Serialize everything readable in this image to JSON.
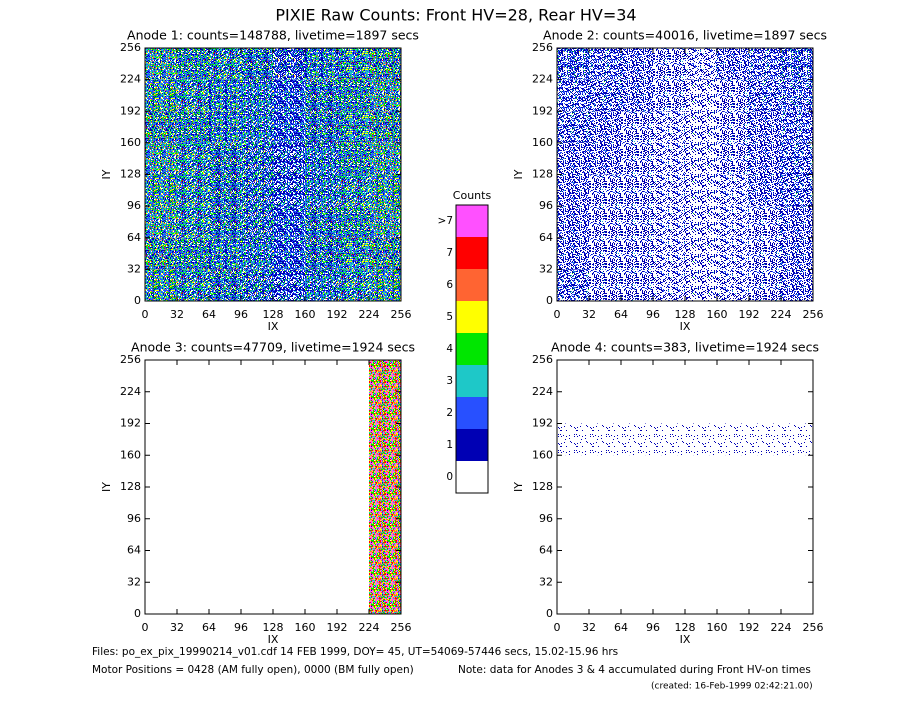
{
  "chart_data": {
    "type": "heatmap",
    "title": "PIXIE Raw Counts:  Front HV=28, Rear HV=34",
    "colorbar": {
      "title": "Counts",
      "categories": [
        "0",
        "1",
        "2",
        "3",
        "4",
        "5",
        "6",
        "7",
        ">7"
      ],
      "colors": [
        "#ffffff",
        "#0000b4",
        "#2850ff",
        "#1ec8c8",
        "#00e600",
        "#ffff00",
        "#ff6432",
        "#ff0000",
        "#ff50ff"
      ]
    },
    "panels": [
      {
        "title": "Anode 1: counts=148788, livetime=1897 secs",
        "xlabel": "IX",
        "ylabel": "IY",
        "xlim": [
          0,
          256
        ],
        "ylim": [
          0,
          256
        ],
        "xticks": [
          0,
          32,
          64,
          96,
          128,
          160,
          192,
          224,
          256
        ],
        "yticks": [
          0,
          32,
          64,
          96,
          128,
          160,
          192,
          224,
          256
        ],
        "values": [
          [
            2.7,
            2.4,
            2.3,
            2.1,
            1.5,
            2.2,
            2.5,
            2.8
          ],
          [
            2.6,
            2.3,
            2.2,
            2.0,
            1.4,
            2.1,
            2.4,
            2.7
          ],
          [
            2.8,
            2.4,
            2.2,
            2.0,
            1.4,
            2.1,
            2.5,
            2.8
          ],
          [
            2.7,
            2.3,
            2.1,
            1.9,
            1.3,
            2.0,
            2.4,
            2.7
          ],
          [
            2.6,
            2.3,
            2.1,
            1.9,
            1.3,
            2.0,
            2.3,
            2.6
          ],
          [
            2.7,
            2.3,
            2.1,
            1.9,
            1.4,
            2.1,
            2.4,
            2.7
          ],
          [
            2.8,
            2.4,
            2.2,
            2.0,
            1.4,
            2.1,
            2.5,
            2.8
          ],
          [
            2.6,
            2.3,
            2.1,
            1.9,
            1.3,
            2.0,
            2.3,
            2.6
          ]
        ]
      },
      {
        "title": "Anode 2: counts=40016, livetime=1897 secs",
        "xlabel": "IX",
        "ylabel": "IY",
        "xlim": [
          0,
          256
        ],
        "ylim": [
          0,
          256
        ],
        "xticks": [
          0,
          32,
          64,
          96,
          128,
          160,
          192,
          224,
          256
        ],
        "yticks": [
          0,
          32,
          64,
          96,
          128,
          160,
          192,
          224,
          256
        ],
        "values": [
          [
            1.0,
            0.8,
            0.6,
            0.5,
            0.4,
            0.6,
            0.8,
            1.0
          ],
          [
            0.8,
            0.7,
            0.6,
            0.5,
            0.3,
            0.5,
            0.7,
            0.9
          ],
          [
            0.7,
            0.6,
            0.5,
            0.4,
            0.3,
            0.5,
            0.6,
            0.8
          ],
          [
            0.6,
            0.6,
            0.5,
            0.4,
            0.3,
            0.5,
            0.6,
            0.7
          ],
          [
            0.6,
            0.5,
            0.5,
            0.4,
            0.3,
            0.4,
            0.6,
            0.7
          ],
          [
            0.6,
            0.5,
            0.5,
            0.4,
            0.3,
            0.4,
            0.5,
            0.6
          ],
          [
            0.6,
            0.5,
            0.5,
            0.4,
            0.3,
            0.4,
            0.5,
            0.6
          ],
          [
            0.7,
            0.5,
            0.5,
            0.4,
            0.3,
            0.4,
            0.5,
            0.6
          ]
        ]
      },
      {
        "title": "Anode 3: counts=47709, livetime=1924 secs",
        "xlabel": "IX",
        "ylabel": "IY",
        "xlim": [
          0,
          256
        ],
        "ylim": [
          0,
          256
        ],
        "xticks": [
          0,
          32,
          64,
          96,
          128,
          160,
          192,
          224,
          256
        ],
        "yticks": [
          0,
          32,
          64,
          96,
          128,
          160,
          192,
          224,
          256
        ],
        "values": [
          [
            0,
            0,
            0,
            0,
            0,
            0,
            0,
            5.8
          ],
          [
            0,
            0,
            0,
            0,
            0,
            0,
            0,
            5.8
          ],
          [
            0,
            0,
            0,
            0,
            0,
            0,
            0,
            5.8
          ],
          [
            0,
            0,
            0,
            0,
            0,
            0,
            0,
            5.8
          ],
          [
            0,
            0,
            0,
            0,
            0,
            0,
            0,
            5.8
          ],
          [
            0,
            0,
            0,
            0,
            0,
            0,
            0,
            5.8
          ],
          [
            0,
            0,
            0,
            0,
            0,
            0,
            0,
            5.8
          ],
          [
            0,
            0,
            0,
            0,
            0,
            0,
            0,
            5.8
          ]
        ]
      },
      {
        "title": "Anode 4: counts=383, livetime=1924 secs",
        "xlabel": "IX",
        "ylabel": "IY",
        "xlim": [
          0,
          256
        ],
        "ylim": [
          0,
          256
        ],
        "xticks": [
          0,
          32,
          64,
          96,
          128,
          160,
          192,
          224,
          256
        ],
        "yticks": [
          0,
          32,
          64,
          96,
          128,
          160,
          192,
          224,
          256
        ],
        "values": [
          [
            0,
            0,
            0,
            0,
            0,
            0,
            0,
            0
          ],
          [
            0,
            0,
            0,
            0,
            0,
            0,
            0,
            0
          ],
          [
            0.05,
            0.05,
            0.05,
            0.05,
            0.05,
            0.05,
            0.05,
            0.05
          ],
          [
            0,
            0,
            0,
            0,
            0,
            0,
            0,
            0
          ],
          [
            0,
            0,
            0,
            0,
            0,
            0,
            0,
            0
          ],
          [
            0,
            0,
            0,
            0,
            0,
            0,
            0,
            0
          ],
          [
            0,
            0,
            0,
            0,
            0,
            0,
            0,
            0
          ],
          [
            0,
            0,
            0,
            0,
            0,
            0,
            0,
            0
          ]
        ]
      }
    ],
    "footer": {
      "files": "Files: po_ex_pix_19990214_v01.cdf    14 FEB 1999, DOY= 45, UT=54069-57446 secs, 15.02-15.96 hrs",
      "motor": "Motor Positions = 0428 (AM fully open), 0000 (BM fully open)",
      "note": "Note: data for Anodes 3 & 4 accumulated during Front HV-on times",
      "created": "(created: 16-Feb-1999 02:42:21.00)"
    }
  }
}
